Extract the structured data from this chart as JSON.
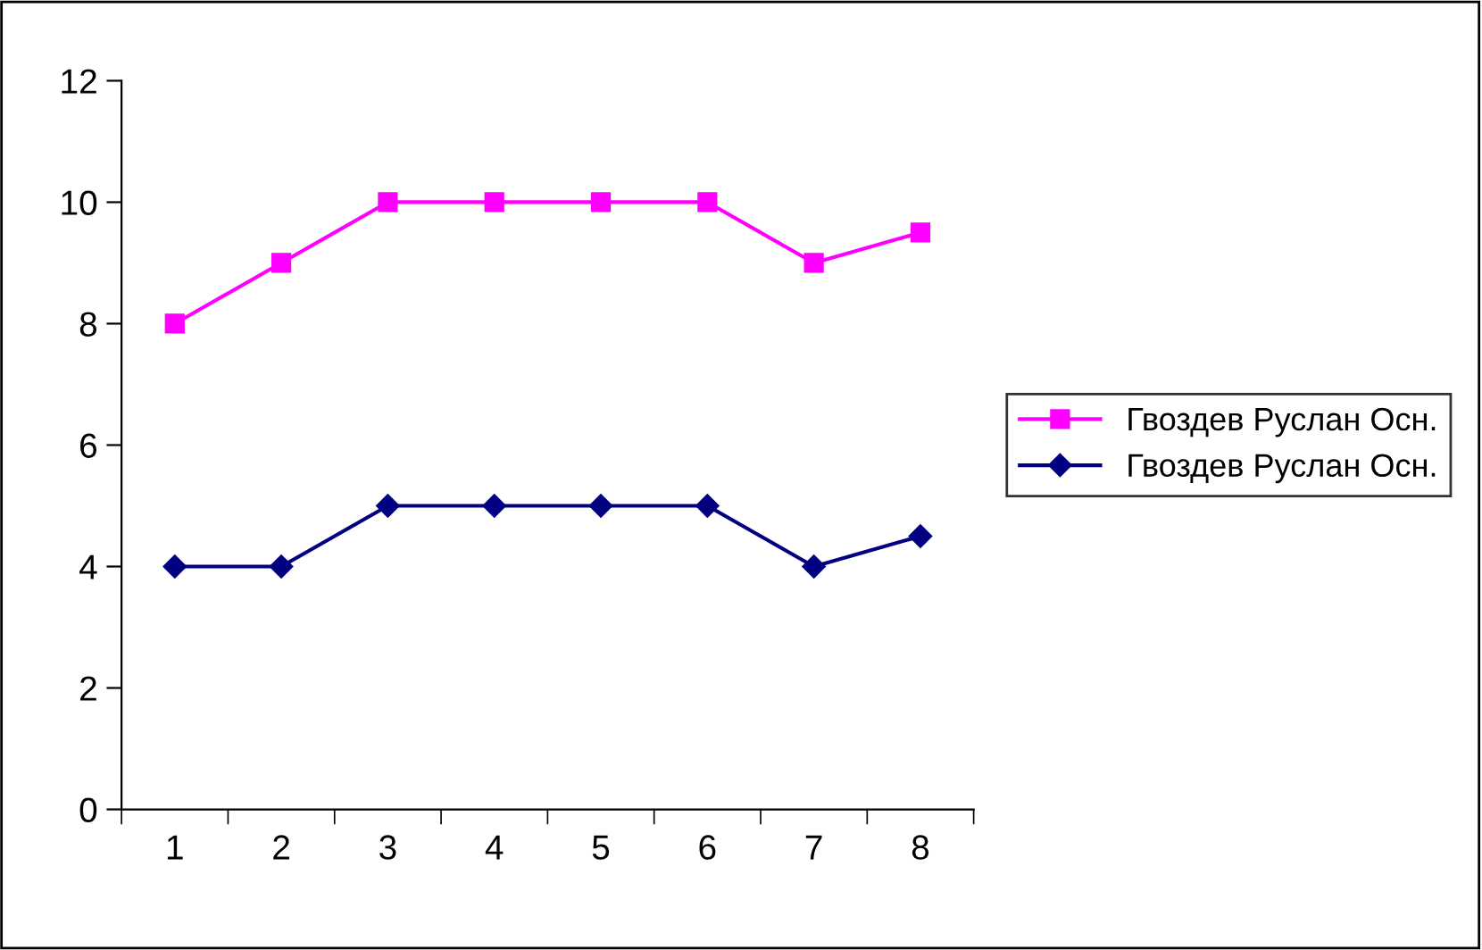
{
  "chart_data": {
    "type": "line",
    "categories": [
      "1",
      "2",
      "3",
      "4",
      "5",
      "6",
      "7",
      "8"
    ],
    "series": [
      {
        "name": "Гвоздев Руслан Осн.",
        "color": "#ff00ff",
        "marker": "square",
        "values": [
          8,
          9,
          10,
          10,
          10,
          10,
          9,
          9.5
        ]
      },
      {
        "name": "Гвоздев Руслан Осн.",
        "color": "#000080",
        "marker": "diamond",
        "values": [
          4,
          4,
          5,
          5,
          5,
          5,
          4,
          4.5
        ]
      }
    ],
    "ylim": [
      0,
      12
    ],
    "yticks": [
      0,
      2,
      4,
      6,
      8,
      10,
      12
    ],
    "grid": false,
    "legend": "right",
    "line_style": "solid"
  }
}
